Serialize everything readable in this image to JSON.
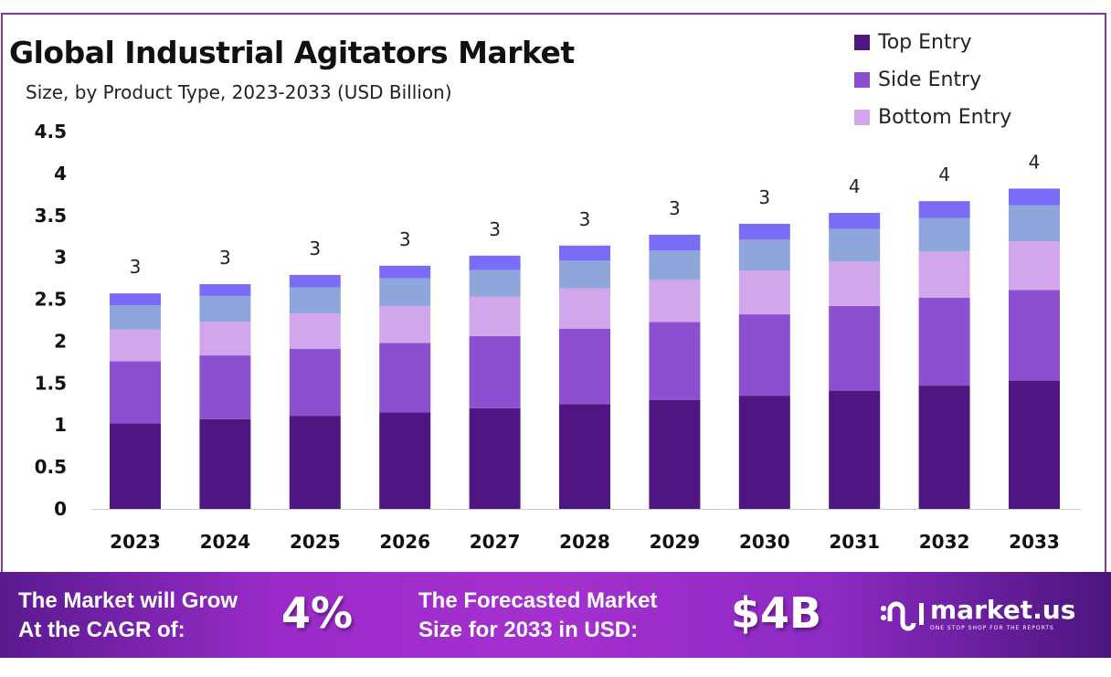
{
  "header": {
    "title": "Global Industrial Agitators Market",
    "subtitle": "Size, by Product Type, 2023-2033 (USD Billion)"
  },
  "chart_data": {
    "type": "bar",
    "stacked": true,
    "title": "Global Industrial Agitators Market",
    "subtitle": "Size, by Product Type, 2023-2033 (USD Billion)",
    "xlabel": "",
    "ylabel": "",
    "ylim": [
      0,
      4.5
    ],
    "yticks": [
      "0",
      "0.5",
      "1",
      "1.5",
      "2",
      "2.5",
      "3",
      "3.5",
      "4",
      "4.5"
    ],
    "categories": [
      "2023",
      "2024",
      "2025",
      "2026",
      "2027",
      "2028",
      "2029",
      "2030",
      "2031",
      "2032",
      "2033"
    ],
    "series": [
      {
        "name": "Top Entry",
        "color": "#4f1580",
        "values": [
          1.02,
          1.07,
          1.11,
          1.15,
          1.2,
          1.25,
          1.3,
          1.35,
          1.41,
          1.47,
          1.53
        ]
      },
      {
        "name": "Side Entry",
        "color": "#8b4fcf",
        "values": [
          0.74,
          0.76,
          0.8,
          0.83,
          0.86,
          0.9,
          0.93,
          0.97,
          1.01,
          1.05,
          1.08
        ]
      },
      {
        "name": "Bottom Entry",
        "color": "#d2a6ea",
        "values": [
          0.38,
          0.4,
          0.42,
          0.44,
          0.47,
          0.48,
          0.5,
          0.52,
          0.53,
          0.55,
          0.58
        ]
      },
      {
        "color": "#8fa6dc",
        "values": [
          0.29,
          0.31,
          0.31,
          0.33,
          0.32,
          0.33,
          0.35,
          0.37,
          0.39,
          0.4,
          0.43
        ]
      },
      {
        "color": "#7a6cf7",
        "values": [
          0.14,
          0.14,
          0.15,
          0.15,
          0.17,
          0.18,
          0.19,
          0.19,
          0.19,
          0.2,
          0.2
        ]
      }
    ],
    "data_labels": [
      "3",
      "3",
      "3",
      "3",
      "3",
      "3",
      "3",
      "3",
      "4",
      "4",
      "4"
    ],
    "grid": false,
    "legend_position": "top-right"
  },
  "footer": {
    "cagr_label_line1": "The Market will Grow",
    "cagr_label_line2": "At the CAGR of:",
    "cagr_value": "4%",
    "forecast_label_line1": "The Forecasted Market",
    "forecast_label_line2": "Size for 2033 in USD:",
    "forecast_value": "$4B",
    "brand_name": "market.us",
    "brand_tagline": "ONE STOP SHOP FOR THE REPORTS"
  }
}
